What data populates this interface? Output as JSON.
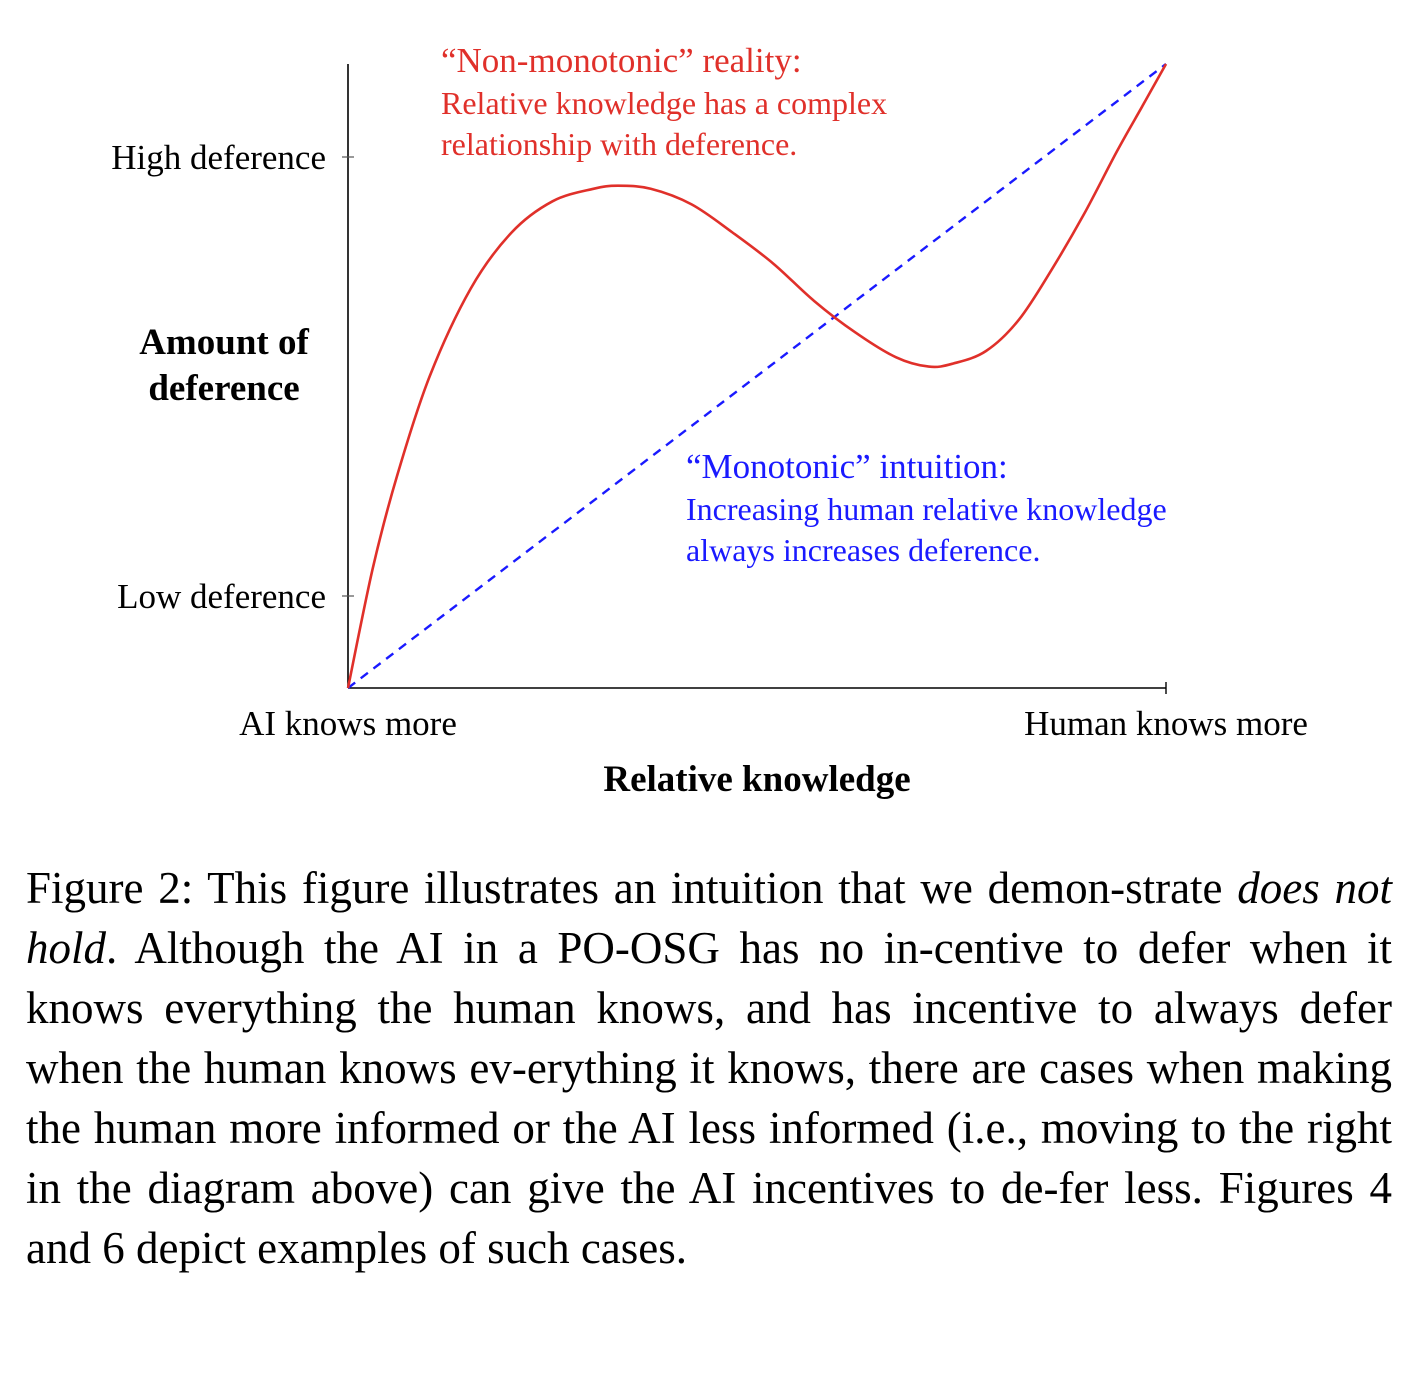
{
  "chart_data": {
    "type": "line",
    "xlabel": "Relative knowledge",
    "ylabel_lines": [
      "Amount of",
      "deference"
    ],
    "x_ticks": [
      "AI knows more",
      "Human knows more"
    ],
    "y_ticks": [
      "High deference",
      "Low deference"
    ],
    "xlim": [
      0,
      1
    ],
    "ylim": [
      0,
      1
    ],
    "grid": false,
    "series": [
      {
        "key": "reality",
        "style": "solid",
        "color": "#e0302a",
        "x": [
          0,
          0.03,
          0.06,
          0.1,
          0.15,
          0.2,
          0.25,
          0.3,
          0.33,
          0.37,
          0.42,
          0.47,
          0.52,
          0.57,
          0.62,
          0.67,
          0.71,
          0.74,
          0.78,
          0.82,
          0.86,
          0.9,
          0.94,
          0.97,
          1.0
        ],
        "y": [
          0,
          0.19,
          0.34,
          0.5,
          0.64,
          0.73,
          0.78,
          0.8,
          0.805,
          0.8,
          0.775,
          0.73,
          0.68,
          0.62,
          0.57,
          0.53,
          0.515,
          0.52,
          0.54,
          0.59,
          0.67,
          0.76,
          0.86,
          0.93,
          1.0
        ],
        "label_lines": [
          "“Non-monotonic” reality:",
          "Relative knowledge has a complex",
          "relationship with deference."
        ]
      },
      {
        "key": "intuition",
        "style": "dashed",
        "color": "#1a1aff",
        "x": [
          0,
          1
        ],
        "y": [
          0,
          1
        ],
        "label_lines": [
          "“Monotonic” intuition:",
          "Increasing human relative knowledge",
          "always increases deference."
        ]
      }
    ]
  },
  "caption": {
    "prefix": "Figure 2: This figure illustrates an intuition that we demon-strate ",
    "emphasis": "does not hold",
    "suffix": ". Although the AI in a PO-OSG has no in-centive to defer when it knows everything the human knows, and has incentive to always defer when the human knows ev-erything it knows, there are cases when making the human more informed or the AI less informed (i.e., moving to the right in the diagram above) can give the AI incentives to de-fer less. Figures 4 and 6 depict examples of such cases."
  }
}
